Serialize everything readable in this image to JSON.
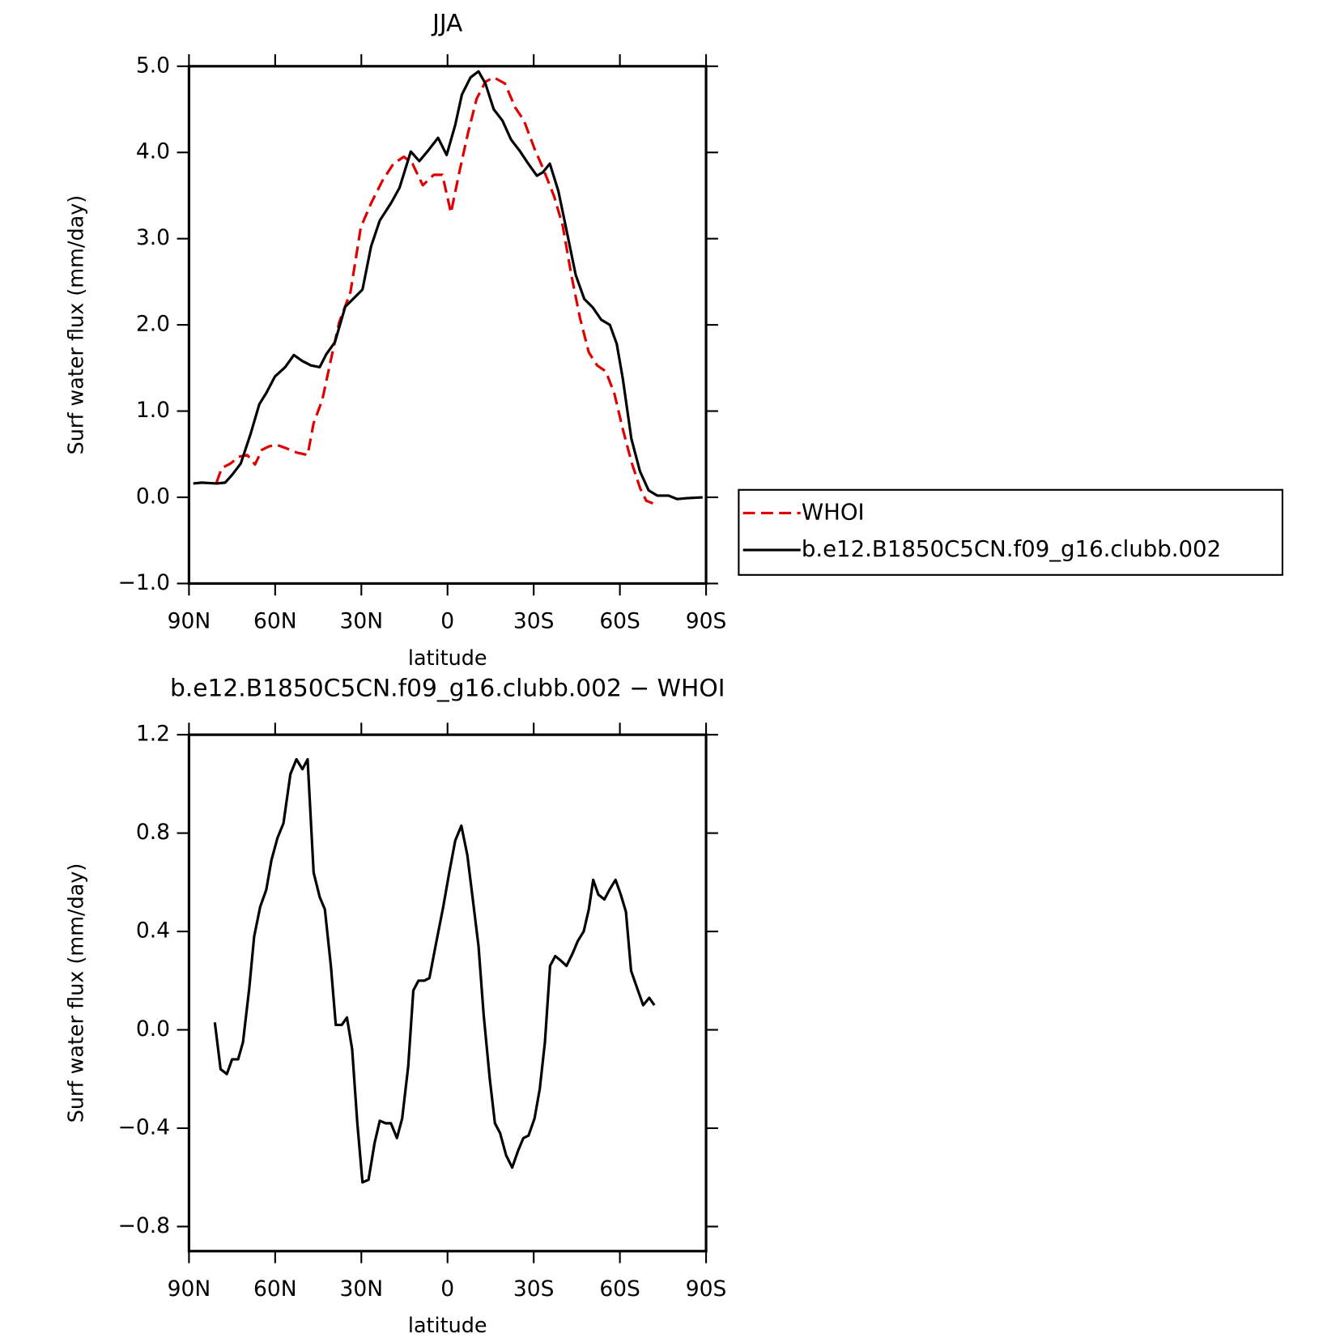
{
  "chart_data": [
    {
      "type": "line",
      "title": "JJA",
      "xlabel": "latitude",
      "ylabel": "Surf water flux (mm/day)",
      "xlim": [
        90,
        -90
      ],
      "xticks": [
        {
          "value": 90,
          "label": "90N"
        },
        {
          "value": 60,
          "label": "60N"
        },
        {
          "value": 30,
          "label": "30N"
        },
        0,
        {
          "value": -30,
          "label": "30S"
        },
        {
          "value": -60,
          "label": "60S"
        },
        {
          "value": -90,
          "label": "90S"
        }
      ],
      "ylim": [
        -1,
        5
      ],
      "yticks": [
        {
          "value": -1,
          "label": "−1.0"
        },
        {
          "value": 0,
          "label": "0.0"
        },
        {
          "value": 1,
          "label": "1.0"
        },
        {
          "value": 2,
          "label": "2.0"
        },
        {
          "value": 3,
          "label": "3.0"
        },
        {
          "value": 4,
          "label": "4.0"
        },
        {
          "value": 5,
          "label": "5.0"
        }
      ],
      "legend": "right",
      "series": [
        {
          "name": "WHOI",
          "color": "#e00000",
          "linestyle": "dashed",
          "x": [
            80.4,
            78.6,
            75.6,
            72.7,
            69.7,
            67.0,
            64.6,
            62.2,
            59.5,
            56.2,
            52.6,
            48.7,
            46.6,
            43.6,
            40.7,
            37.7,
            33.8,
            30.2,
            26.6,
            22.7,
            18.8,
            15.2,
            12.2,
            8.6,
            4.8,
            1.8,
            -1.2,
            -4.1,
            -7.1,
            -10.1,
            -13.2,
            -16.1,
            -20.0,
            -23.6,
            -26.6,
            -30.2,
            -33.2,
            -37.1,
            -40.1,
            -43.1,
            -46.1,
            -49.2,
            -52.1,
            -55.1,
            -58.1,
            -61.1,
            -64.1,
            -67.1,
            -69.2,
            -71.5
          ],
          "values": [
            0.17,
            0.34,
            0.39,
            0.47,
            0.49,
            0.38,
            0.55,
            0.59,
            0.61,
            0.57,
            0.52,
            0.49,
            0.86,
            1.13,
            1.58,
            2.03,
            2.38,
            3.13,
            3.41,
            3.67,
            3.87,
            3.95,
            3.87,
            3.62,
            3.74,
            3.74,
            3.3,
            3.77,
            4.22,
            4.62,
            4.82,
            4.87,
            4.8,
            4.52,
            4.37,
            4.05,
            3.82,
            3.49,
            3.15,
            2.58,
            2.08,
            1.68,
            1.53,
            1.46,
            1.2,
            0.78,
            0.4,
            0.1,
            -0.04,
            -0.07
          ]
        },
        {
          "name": "b.e12.B1850C5CN.f09_g16.clubb.002",
          "color": "#000000",
          "linestyle": "solid",
          "x": [
            88.5,
            85.5,
            80.4,
            77.4,
            75.0,
            72.0,
            68.5,
            65.5,
            63.1,
            60.1,
            56.5,
            53.5,
            50.5,
            47.5,
            44.5,
            42.2,
            39.2,
            35.6,
            32.6,
            29.6,
            26.6,
            23.6,
            19.7,
            16.7,
            12.8,
            9.8,
            6.8,
            3.3,
            0.3,
            -2.7,
            -5.0,
            -8.0,
            -10.8,
            -13.2,
            -16.1,
            -19.1,
            -22.1,
            -25.1,
            -28.1,
            -31.1,
            -33.2,
            -35.6,
            -38.6,
            -41.6,
            -44.6,
            -47.6,
            -50.6,
            -53.5,
            -56.5,
            -58.9,
            -61.0,
            -64.0,
            -67.0,
            -70.0,
            -73.0,
            -76.9,
            -79.9,
            -83.4,
            -88.8
          ],
          "values": [
            0.16,
            0.17,
            0.16,
            0.17,
            0.26,
            0.39,
            0.74,
            1.08,
            1.21,
            1.4,
            1.51,
            1.65,
            1.58,
            1.53,
            1.51,
            1.66,
            1.8,
            2.21,
            2.31,
            2.41,
            2.91,
            3.21,
            3.41,
            3.59,
            4.01,
            3.9,
            4.02,
            4.17,
            3.97,
            4.32,
            4.67,
            4.87,
            4.94,
            4.8,
            4.5,
            4.37,
            4.15,
            4.02,
            3.87,
            3.73,
            3.77,
            3.87,
            3.55,
            3.07,
            2.58,
            2.3,
            2.2,
            2.06,
            2.0,
            1.78,
            1.38,
            0.68,
            0.3,
            0.08,
            0.02,
            0.02,
            -0.02,
            -0.01,
            0.0
          ]
        }
      ]
    },
    {
      "type": "line",
      "title": "b.e12.B1850C5CN.f09_g16.clubb.002 − WHOI",
      "xlabel": "latitude",
      "ylabel": "Surf water flux (mm/day)",
      "xlim": [
        90,
        -90
      ],
      "xticks": [
        {
          "value": 90,
          "label": "90N"
        },
        {
          "value": 60,
          "label": "60N"
        },
        {
          "value": 30,
          "label": "30N"
        },
        0,
        {
          "value": -30,
          "label": "30S"
        },
        {
          "value": -60,
          "label": "60S"
        },
        {
          "value": -90,
          "label": "90S"
        }
      ],
      "ylim": [
        -0.9,
        1.2
      ],
      "yticks": [
        {
          "value": -0.8,
          "label": "−0.8"
        },
        {
          "value": -0.4,
          "label": "−0.4"
        },
        {
          "value": 0,
          "label": "0.0"
        },
        0.4,
        0.8,
        1.2
      ],
      "series": [
        {
          "color": "#000000",
          "linestyle": "solid",
          "x": [
            81,
            79,
            76.8,
            75,
            72.9,
            71.2,
            69,
            67.3,
            65.2,
            63.1,
            61.3,
            59.2,
            57.1,
            54.7,
            52.6,
            50.5,
            48.7,
            46.6,
            44.5,
            42.7,
            40.6,
            38.9,
            36.8,
            35.0,
            33.2,
            31.4,
            29.6,
            27.5,
            25.4,
            23.6,
            21.5,
            19.7,
            17.6,
            15.8,
            13.7,
            11.9,
            10.1,
            8.1,
            6.3,
            4.2,
            1.5,
            -0.6,
            -2.7,
            -4.8,
            -6.9,
            -8.7,
            -10.8,
            -12.6,
            -14.7,
            -16.5,
            -18.3,
            -20.4,
            -22.5,
            -24.6,
            -26.4,
            -28.2,
            -30.3,
            -32.1,
            -33.9,
            -35.7,
            -37.5,
            -39.6,
            -41.4,
            -43.5,
            -45.3,
            -47.4,
            -49.2,
            -50.7,
            -52.5,
            -54.6,
            -56.4,
            -58.5,
            -60.3,
            -62.1,
            -63.9,
            -66.0,
            -68.1,
            -70.2,
            -72.0
          ],
          "values": [
            0.03,
            -0.16,
            -0.18,
            -0.12,
            -0.12,
            -0.05,
            0.17,
            0.38,
            0.5,
            0.57,
            0.69,
            0.78,
            0.84,
            1.04,
            1.1,
            1.06,
            1.1,
            0.64,
            0.54,
            0.49,
            0.26,
            0.02,
            0.02,
            0.05,
            -0.08,
            -0.38,
            -0.62,
            -0.61,
            -0.46,
            -0.37,
            -0.38,
            -0.38,
            -0.44,
            -0.36,
            -0.15,
            0.16,
            0.2,
            0.2,
            0.21,
            0.34,
            0.5,
            0.64,
            0.77,
            0.83,
            0.71,
            0.54,
            0.34,
            0.06,
            -0.2,
            -0.38,
            -0.42,
            -0.51,
            -0.56,
            -0.49,
            -0.44,
            -0.43,
            -0.36,
            -0.24,
            -0.05,
            0.26,
            0.3,
            0.28,
            0.26,
            0.31,
            0.36,
            0.4,
            0.49,
            0.61,
            0.55,
            0.53,
            0.57,
            0.61,
            0.55,
            0.48,
            0.24,
            0.17,
            0.1,
            0.13,
            0.1
          ]
        }
      ]
    }
  ]
}
